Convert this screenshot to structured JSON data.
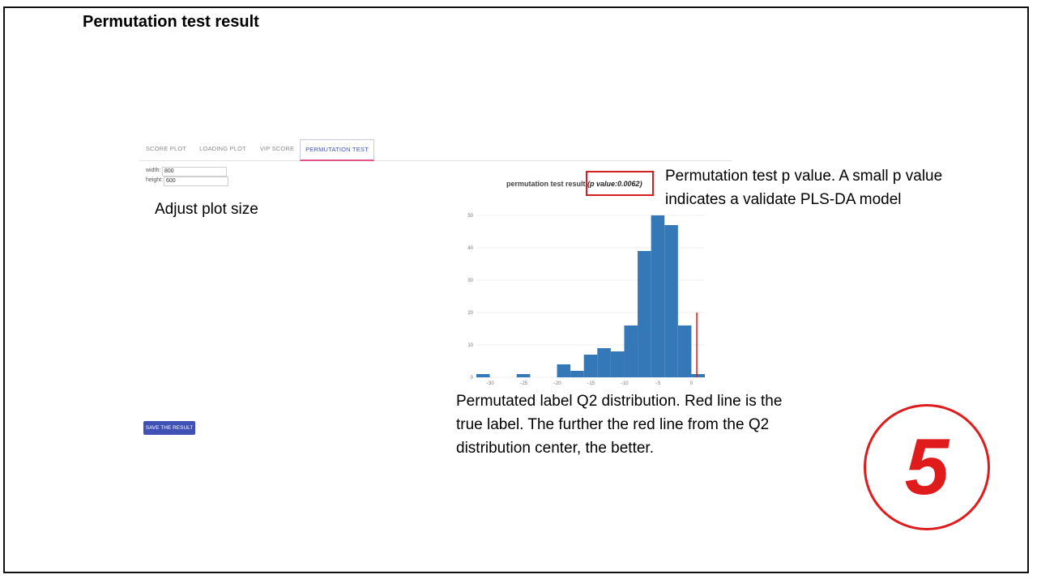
{
  "slide": {
    "title": "Permutation test result",
    "step_number": "5"
  },
  "tabs": [
    {
      "label": "SCORE PLOT"
    },
    {
      "label": "LOADING PLOT"
    },
    {
      "label": "VIP SCORE"
    },
    {
      "label": "PERMUTATION TEST"
    }
  ],
  "size_controls": {
    "width_label": "width:",
    "width_value": "800",
    "height_label": "height:",
    "height_value": "600"
  },
  "save_button": {
    "label": "SAVE THE RESULT"
  },
  "annotations": {
    "plot_size": "Adjust plot size",
    "pvalue": "Permutation test p value. A small p value indicates a validate PLS-DA model",
    "distribution": "Permutated label Q2 distribution. Red line is the true label. The further the red line from the Q2 distribution center, the better."
  },
  "colors": {
    "bar": "#3578b8",
    "true_label_line": "#e41a1c",
    "highlight": "#d42020",
    "active_tab": "#4454b8"
  },
  "chart_data": {
    "type": "bar",
    "title": "permutation test result",
    "subtitle": "(p value:0.0062)",
    "xlabel": "",
    "ylabel": "",
    "xlim": [
      -32,
      2
    ],
    "ylim": [
      0,
      50
    ],
    "bin_width": 2,
    "x_ticks": [
      -30,
      -25,
      -20,
      -15,
      -10,
      -5,
      0
    ],
    "y_ticks": [
      0,
      10,
      20,
      30,
      40,
      50
    ],
    "bins": [
      {
        "x0": -32,
        "x1": -30,
        "count": 1
      },
      {
        "x0": -26,
        "x1": -24,
        "count": 1
      },
      {
        "x0": -20,
        "x1": -18,
        "count": 4
      },
      {
        "x0": -18,
        "x1": -16,
        "count": 2
      },
      {
        "x0": -16,
        "x1": -14,
        "count": 7
      },
      {
        "x0": -14,
        "x1": -12,
        "count": 9
      },
      {
        "x0": -12,
        "x1": -10,
        "count": 8
      },
      {
        "x0": -10,
        "x1": -8,
        "count": 16
      },
      {
        "x0": -8,
        "x1": -6,
        "count": 39
      },
      {
        "x0": -6,
        "x1": -4,
        "count": 50
      },
      {
        "x0": -4,
        "x1": -2,
        "count": 47
      },
      {
        "x0": -2,
        "x1": 0,
        "count": 16
      },
      {
        "x0": 0,
        "x1": 2,
        "count": 1
      }
    ],
    "true_label": {
      "x": 0.8,
      "height": 20
    },
    "grid": true,
    "legend": "none"
  }
}
